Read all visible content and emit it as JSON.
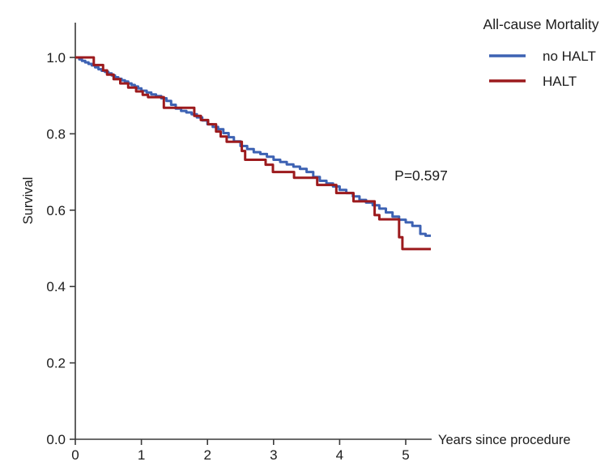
{
  "figure": {
    "background": "#ffffff",
    "axis_color": "#3a3a3a",
    "text_color": "#1c1c1c"
  },
  "chart_data": {
    "type": "line",
    "style": "kaplan-meier-step",
    "legend_title": "All-cause Mortality",
    "legend_position": "top-right",
    "xlabel": "Years since procedure",
    "ylabel": "Survival",
    "annotation": "P=0.597",
    "grid": false,
    "xlim": [
      0,
      5.4
    ],
    "ylim": [
      0.0,
      1.0
    ],
    "x_end": 5.38,
    "xticks": [
      "0",
      "1",
      "2",
      "3",
      "4",
      "5"
    ],
    "yticks": [
      "0.0",
      "0.2",
      "0.4",
      "0.6",
      "0.8",
      "1.0"
    ],
    "series": [
      {
        "name": "no HALT",
        "color": "#3d62b3",
        "steps": [
          [
            0,
            1.0
          ],
          [
            0.06,
            0.995
          ],
          [
            0.1,
            0.991
          ],
          [
            0.15,
            0.987
          ],
          [
            0.2,
            0.983
          ],
          [
            0.25,
            0.979
          ],
          [
            0.3,
            0.974
          ],
          [
            0.35,
            0.969
          ],
          [
            0.4,
            0.965
          ],
          [
            0.45,
            0.962
          ],
          [
            0.5,
            0.958
          ],
          [
            0.55,
            0.953
          ],
          [
            0.6,
            0.948
          ],
          [
            0.65,
            0.944
          ],
          [
            0.7,
            0.94
          ],
          [
            0.75,
            0.937
          ],
          [
            0.8,
            0.932
          ],
          [
            0.85,
            0.928
          ],
          [
            0.9,
            0.924
          ],
          [
            0.95,
            0.919
          ],
          [
            1.0,
            0.913
          ],
          [
            1.08,
            0.908
          ],
          [
            1.15,
            0.903
          ],
          [
            1.22,
            0.899
          ],
          [
            1.3,
            0.893
          ],
          [
            1.38,
            0.886
          ],
          [
            1.45,
            0.876
          ],
          [
            1.52,
            0.866
          ],
          [
            1.6,
            0.86
          ],
          [
            1.68,
            0.856
          ],
          [
            1.76,
            0.851
          ],
          [
            1.84,
            0.843
          ],
          [
            1.92,
            0.835
          ],
          [
            2.0,
            0.825
          ],
          [
            2.08,
            0.818
          ],
          [
            2.16,
            0.812
          ],
          [
            2.24,
            0.802
          ],
          [
            2.32,
            0.791
          ],
          [
            2.4,
            0.78
          ],
          [
            2.5,
            0.768
          ],
          [
            2.6,
            0.76
          ],
          [
            2.7,
            0.752
          ],
          [
            2.8,
            0.747
          ],
          [
            2.9,
            0.74
          ],
          [
            3.0,
            0.732
          ],
          [
            3.1,
            0.726
          ],
          [
            3.2,
            0.72
          ],
          [
            3.3,
            0.714
          ],
          [
            3.4,
            0.708
          ],
          [
            3.5,
            0.7
          ],
          [
            3.6,
            0.687
          ],
          [
            3.7,
            0.677
          ],
          [
            3.8,
            0.67
          ],
          [
            3.9,
            0.662
          ],
          [
            4.0,
            0.653
          ],
          [
            4.1,
            0.645
          ],
          [
            4.2,
            0.636
          ],
          [
            4.3,
            0.627
          ],
          [
            4.4,
            0.62
          ],
          [
            4.5,
            0.613
          ],
          [
            4.6,
            0.604
          ],
          [
            4.7,
            0.594
          ],
          [
            4.8,
            0.583
          ],
          [
            4.9,
            0.575
          ],
          [
            5.0,
            0.568
          ],
          [
            5.1,
            0.559
          ],
          [
            5.22,
            0.538
          ],
          [
            5.3,
            0.533
          ]
        ]
      },
      {
        "name": "HALT",
        "color": "#9c1a1d",
        "steps": [
          [
            0,
            1.0
          ],
          [
            0.28,
            0.98
          ],
          [
            0.42,
            0.966
          ],
          [
            0.48,
            0.955
          ],
          [
            0.58,
            0.943
          ],
          [
            0.68,
            0.932
          ],
          [
            0.8,
            0.921
          ],
          [
            0.92,
            0.911
          ],
          [
            1.02,
            0.902
          ],
          [
            1.1,
            0.896
          ],
          [
            1.34,
            0.868
          ],
          [
            1.8,
            0.847
          ],
          [
            1.9,
            0.836
          ],
          [
            2.01,
            0.825
          ],
          [
            2.13,
            0.806
          ],
          [
            2.2,
            0.793
          ],
          [
            2.29,
            0.779
          ],
          [
            2.52,
            0.755
          ],
          [
            2.57,
            0.732
          ],
          [
            2.88,
            0.719
          ],
          [
            2.99,
            0.7
          ],
          [
            3.31,
            0.685
          ],
          [
            3.66,
            0.666
          ],
          [
            3.95,
            0.645
          ],
          [
            4.21,
            0.623
          ],
          [
            4.53,
            0.587
          ],
          [
            4.6,
            0.576
          ],
          [
            4.9,
            0.529
          ],
          [
            4.95,
            0.498
          ]
        ]
      }
    ]
  }
}
